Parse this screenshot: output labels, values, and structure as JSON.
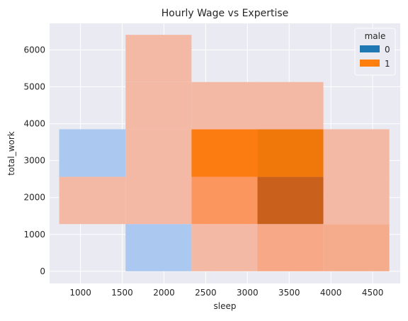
{
  "chart_data": {
    "type": "heatmap",
    "title": "Hourly Wage vs Expertise",
    "xlabel": "sleep",
    "ylabel": "total_work",
    "xlim": [
      630,
      4830
    ],
    "ylim": [
      -330,
      6720
    ],
    "x_ticks": [
      1000,
      1500,
      2000,
      2500,
      3000,
      3500,
      4000,
      4500
    ],
    "y_ticks": [
      0,
      1000,
      2000,
      3000,
      4000,
      5000,
      6000
    ],
    "x_bin_edges": [
      745,
      1540,
      2330,
      3120,
      3910,
      4700
    ],
    "y_bin_edges": [
      0,
      1280,
      2560,
      3850,
      5130,
      6410
    ],
    "grid": true,
    "background": "#eaeaf2",
    "legend": {
      "title": "male",
      "placement": "top-right",
      "entries": [
        {
          "label": "0",
          "color": "#1f77b4"
        },
        {
          "label": "1",
          "color": "#ff7f0e"
        }
      ]
    },
    "cells": [
      {
        "x_bin": 0,
        "y_bin": 2,
        "color": "#abc8f0",
        "group": "0"
      },
      {
        "x_bin": 1,
        "y_bin": 0,
        "color": "#abc8f0",
        "group": "0"
      },
      {
        "x_bin": 0,
        "y_bin": 1,
        "color": "#f4b9a4",
        "group": "1"
      },
      {
        "x_bin": 1,
        "y_bin": 1,
        "color": "#f4b9a4",
        "group": "1"
      },
      {
        "x_bin": 1,
        "y_bin": 2,
        "color": "#f4b9a4",
        "group": "1"
      },
      {
        "x_bin": 1,
        "y_bin": 3,
        "color": "#f4b9a4",
        "group": "1"
      },
      {
        "x_bin": 1,
        "y_bin": 4,
        "color": "#f4b9a4",
        "group": "1"
      },
      {
        "x_bin": 2,
        "y_bin": 0,
        "color": "#f4b9a4",
        "group": "1"
      },
      {
        "x_bin": 2,
        "y_bin": 1,
        "color": "#fc965f",
        "group": "1"
      },
      {
        "x_bin": 2,
        "y_bin": 2,
        "color": "#fd7c12",
        "group": "1"
      },
      {
        "x_bin": 2,
        "y_bin": 3,
        "color": "#f4b9a4",
        "group": "1"
      },
      {
        "x_bin": 3,
        "y_bin": 0,
        "color": "#f7a887",
        "group": "1"
      },
      {
        "x_bin": 3,
        "y_bin": 1,
        "color": "#c9601b",
        "group": "1"
      },
      {
        "x_bin": 3,
        "y_bin": 2,
        "color": "#f0780b",
        "group": "1"
      },
      {
        "x_bin": 3,
        "y_bin": 3,
        "color": "#f4b9a4",
        "group": "1"
      },
      {
        "x_bin": 4,
        "y_bin": 0,
        "color": "#f4ac8c",
        "group": "1"
      },
      {
        "x_bin": 4,
        "y_bin": 1,
        "color": "#f4b9a4",
        "group": "1"
      },
      {
        "x_bin": 4,
        "y_bin": 2,
        "color": "#f4b9a4",
        "group": "1"
      }
    ]
  }
}
